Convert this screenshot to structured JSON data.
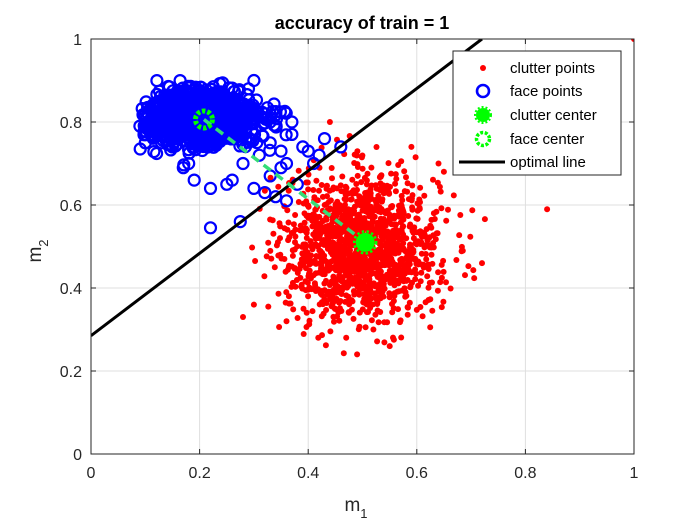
{
  "chart_data": {
    "type": "scatter",
    "title": "accuracy of train = 1",
    "xlabel": "m",
    "xlabel_sub": "1",
    "ylabel": "m",
    "ylabel_sub": "2",
    "xlim": [
      0,
      1
    ],
    "ylim": [
      0,
      1
    ],
    "xticks": [
      "0",
      "0.2",
      "0.4",
      "0.6",
      "0.8",
      "1"
    ],
    "yticks": [
      "0",
      "0.2",
      "0.4",
      "0.6",
      "0.8",
      "1"
    ],
    "grid": true,
    "legend_position": "top-right",
    "series": [
      {
        "name": "clutter points",
        "marker": "dot",
        "color": "#ff0000",
        "cluster": {
          "center": [
            0.5,
            0.5
          ],
          "spread": [
            0.07,
            0.085
          ],
          "count": 1500,
          "range_x": [
            0.26,
            0.74
          ],
          "range_y": [
            0.24,
            0.78
          ]
        },
        "points": [
          [
            1.0,
            1.0
          ],
          [
            0.84,
            0.59
          ],
          [
            0.69,
            0.73
          ],
          [
            0.65,
            0.68
          ],
          [
            0.64,
            0.7
          ],
          [
            0.49,
            0.24
          ],
          [
            0.44,
            0.8
          ],
          [
            0.59,
            0.74
          ],
          [
            0.28,
            0.33
          ],
          [
            0.3,
            0.36
          ],
          [
            0.52,
            0.3
          ],
          [
            0.72,
            0.46
          ],
          [
            0.55,
            0.26
          ],
          [
            0.36,
            0.32
          ],
          [
            0.47,
            0.28
          ]
        ]
      },
      {
        "name": "face points",
        "marker": "circle",
        "color": "#0000ff",
        "cluster": {
          "center": [
            0.2,
            0.81
          ],
          "spread": [
            0.06,
            0.035
          ],
          "count": 900,
          "range_x": [
            0.09,
            0.36
          ],
          "range_y": [
            0.66,
            0.9
          ]
        },
        "points": [
          [
            0.22,
            0.545
          ],
          [
            0.275,
            0.56
          ],
          [
            0.36,
            0.61
          ],
          [
            0.38,
            0.65
          ],
          [
            0.33,
            0.67
          ],
          [
            0.41,
            0.7
          ],
          [
            0.46,
            0.74
          ],
          [
            0.43,
            0.76
          ],
          [
            0.39,
            0.74
          ],
          [
            0.42,
            0.72
          ],
          [
            0.37,
            0.8
          ],
          [
            0.37,
            0.77
          ],
          [
            0.33,
            0.8
          ],
          [
            0.3,
            0.9
          ],
          [
            0.29,
            0.88
          ],
          [
            0.33,
            0.75
          ],
          [
            0.35,
            0.73
          ],
          [
            0.4,
            0.73
          ],
          [
            0.31,
            0.72
          ],
          [
            0.28,
            0.7
          ],
          [
            0.18,
            0.7
          ],
          [
            0.09,
            0.79
          ],
          [
            0.1,
            0.75
          ],
          [
            0.11,
            0.77
          ],
          [
            0.13,
            0.75
          ],
          [
            0.15,
            0.74
          ],
          [
            0.17,
            0.69
          ],
          [
            0.19,
            0.66
          ],
          [
            0.25,
            0.65
          ],
          [
            0.22,
            0.64
          ],
          [
            0.26,
            0.66
          ],
          [
            0.3,
            0.64
          ],
          [
            0.32,
            0.63
          ],
          [
            0.34,
            0.62
          ],
          [
            0.35,
            0.69
          ],
          [
            0.36,
            0.7
          ]
        ]
      },
      {
        "name": "clutter center",
        "marker": "star-filled",
        "color": "#00ff00",
        "points": [
          [
            0.505,
            0.51
          ]
        ]
      },
      {
        "name": "face center",
        "marker": "ring",
        "color": "#00ff00",
        "points": [
          [
            0.208,
            0.806
          ]
        ]
      },
      {
        "name": "optimal line",
        "marker": "line",
        "color": "#000000",
        "points": [
          [
            0.0,
            0.285
          ],
          [
            0.72,
            1.0
          ]
        ]
      }
    ],
    "connector": {
      "style": "dashed",
      "color": "#33dd77",
      "from": [
        0.208,
        0.806
      ],
      "to": [
        0.505,
        0.51
      ]
    }
  }
}
